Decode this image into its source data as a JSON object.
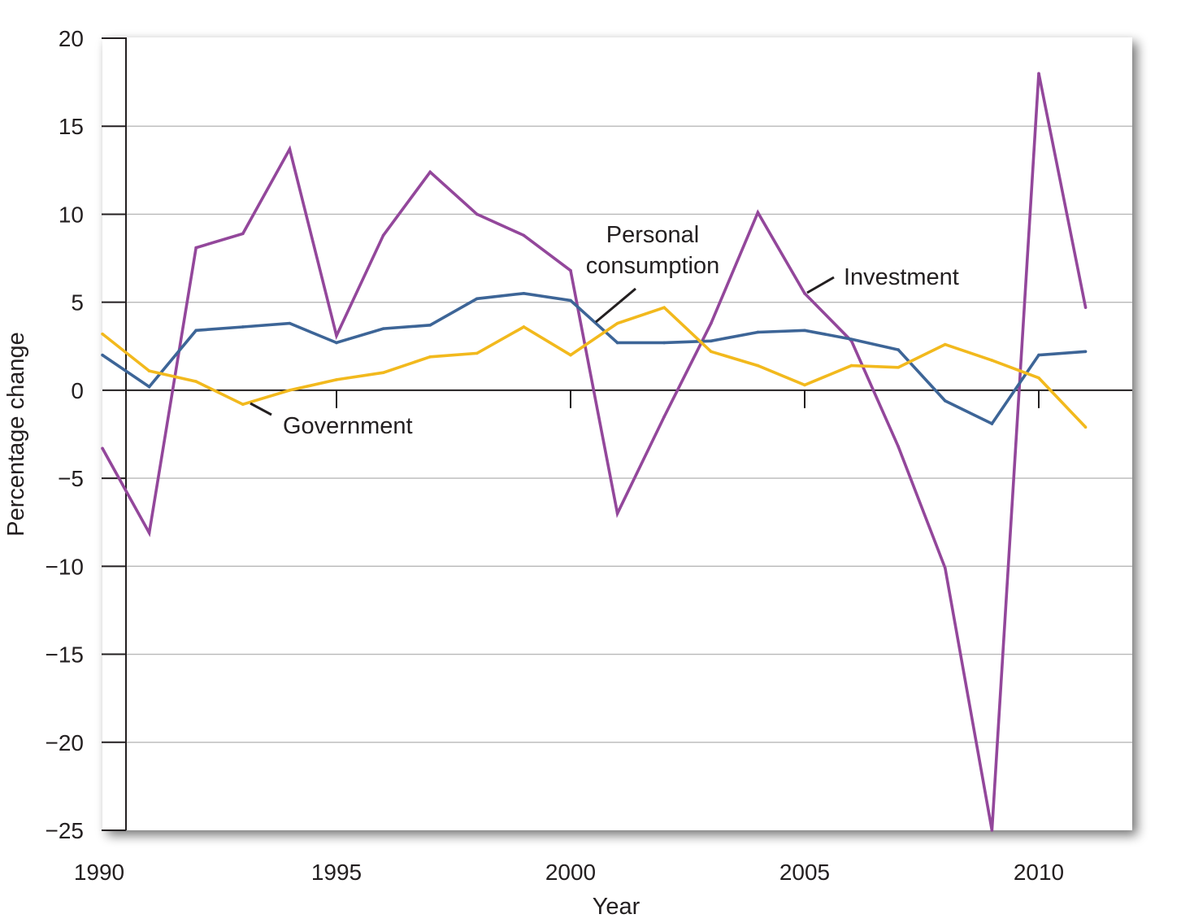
{
  "chart_data": {
    "type": "line",
    "title": "",
    "xlabel": "Year",
    "ylabel": "Percentage change",
    "xlim": [
      1990,
      2012
    ],
    "ylim": [
      -25,
      20
    ],
    "x_ticks": [
      1990,
      1995,
      2000,
      2005,
      2010
    ],
    "y_ticks": [
      20,
      15,
      10,
      5,
      0,
      -5,
      -10,
      -15,
      -20,
      -25
    ],
    "y_tick_labels": [
      "20",
      "15",
      "10",
      "5",
      "0",
      "−5",
      "−10",
      "−15",
      "−20",
      "−25"
    ],
    "grid": true,
    "legend": "inline labels",
    "x": [
      1990,
      1991,
      1992,
      1993,
      1994,
      1995,
      1996,
      1997,
      1998,
      1999,
      2000,
      2001,
      2002,
      2003,
      2004,
      2005,
      2006,
      2007,
      2008,
      2009,
      2010,
      2011
    ],
    "series": [
      {
        "name": "Investment",
        "color": "#93479b",
        "values": [
          -3.3,
          -8.1,
          8.1,
          8.9,
          13.7,
          3.1,
          8.8,
          12.4,
          10.0,
          8.8,
          6.8,
          -7.0,
          -1.5,
          3.8,
          10.1,
          5.5,
          2.8,
          -3.2,
          -10.1,
          -25.0,
          18.0,
          4.7
        ]
      },
      {
        "name": "Personal consumption",
        "color": "#3d6597",
        "values": [
          2.0,
          0.2,
          3.4,
          3.6,
          3.8,
          2.7,
          3.5,
          3.7,
          5.2,
          5.5,
          5.1,
          2.7,
          2.7,
          2.8,
          3.3,
          3.4,
          2.9,
          2.3,
          -0.6,
          -1.9,
          2.0,
          2.2
        ]
      },
      {
        "name": "Government",
        "color": "#f2b91d",
        "values": [
          3.2,
          1.1,
          0.5,
          -0.8,
          0.0,
          0.6,
          1.0,
          1.9,
          2.1,
          3.6,
          2.0,
          3.8,
          4.7,
          2.2,
          1.4,
          0.3,
          1.4,
          1.3,
          2.6,
          1.7,
          0.7,
          -2.1
        ]
      }
    ]
  }
}
